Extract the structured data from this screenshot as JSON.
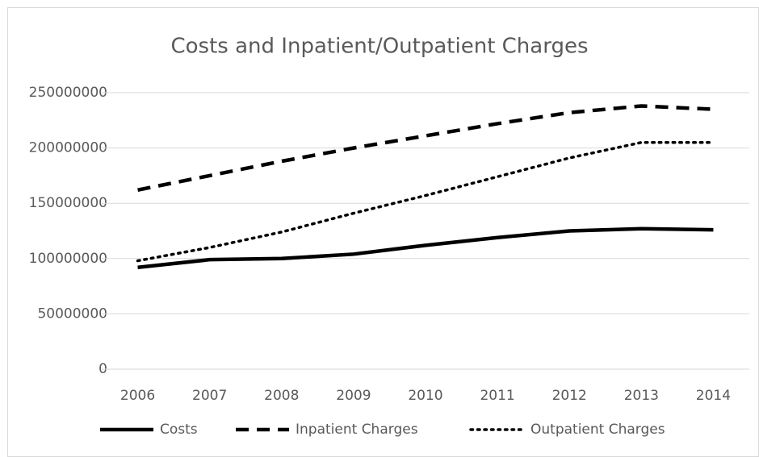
{
  "chart_data": {
    "type": "line",
    "title": "Costs and Inpatient/Outpatient Charges",
    "categories": [
      "2006",
      "2007",
      "2008",
      "2009",
      "2010",
      "2011",
      "2012",
      "2013",
      "2014"
    ],
    "series": [
      {
        "name": "Costs",
        "color": "#000000",
        "dash": "solid",
        "values": [
          92000000,
          99000000,
          100000000,
          104000000,
          112000000,
          119000000,
          125000000,
          127000000,
          126000000
        ]
      },
      {
        "name": "Inpatient Charges",
        "color": "#000000",
        "dash": "dashed",
        "values": [
          162000000,
          175000000,
          188000000,
          200000000,
          211000000,
          222000000,
          232000000,
          238000000,
          235000000
        ]
      },
      {
        "name": "Outpatient Charges",
        "color": "#000000",
        "dash": "dotted",
        "values": [
          98000000,
          110000000,
          124000000,
          141000000,
          157000000,
          174000000,
          191000000,
          205000000,
          205000000
        ]
      }
    ],
    "ylim": [
      0,
      250000000
    ],
    "yticks": [
      0,
      50000000,
      100000000,
      150000000,
      200000000,
      250000000
    ],
    "grid": true,
    "legend": "bottom"
  }
}
